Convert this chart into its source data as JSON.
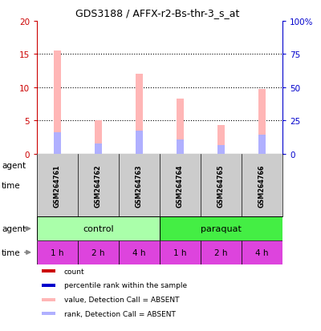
{
  "title": "GDS3188 / AFFX-r2-Bs-thr-3_s_at",
  "samples": [
    "GSM264761",
    "GSM264762",
    "GSM264763",
    "GSM264764",
    "GSM264765",
    "GSM264766"
  ],
  "pink_values": [
    15.5,
    5.0,
    12.0,
    8.3,
    4.3,
    9.7
  ],
  "blue_values": [
    3.2,
    1.5,
    3.5,
    2.1,
    1.3,
    2.8
  ],
  "ylim_left": [
    0,
    20
  ],
  "ylim_right": [
    0,
    100
  ],
  "yticks_left": [
    0,
    5,
    10,
    15,
    20
  ],
  "yticks_right": [
    0,
    25,
    50,
    75,
    100
  ],
  "left_tick_color": "#cc0000",
  "right_tick_color": "#0000cc",
  "bar_pink": "#ffb6b6",
  "bar_blue": "#b0b0ff",
  "agent_colors": [
    "#aaffaa",
    "#44ee44"
  ],
  "time_bg": "#dd44dd",
  "sample_bg": "#cccccc",
  "legend_colors": [
    "#cc0000",
    "#0000cc",
    "#ffb6b6",
    "#b0b0ff"
  ],
  "legend_labels": [
    "count",
    "percentile rank within the sample",
    "value, Detection Call = ABSENT",
    "rank, Detection Call = ABSENT"
  ]
}
